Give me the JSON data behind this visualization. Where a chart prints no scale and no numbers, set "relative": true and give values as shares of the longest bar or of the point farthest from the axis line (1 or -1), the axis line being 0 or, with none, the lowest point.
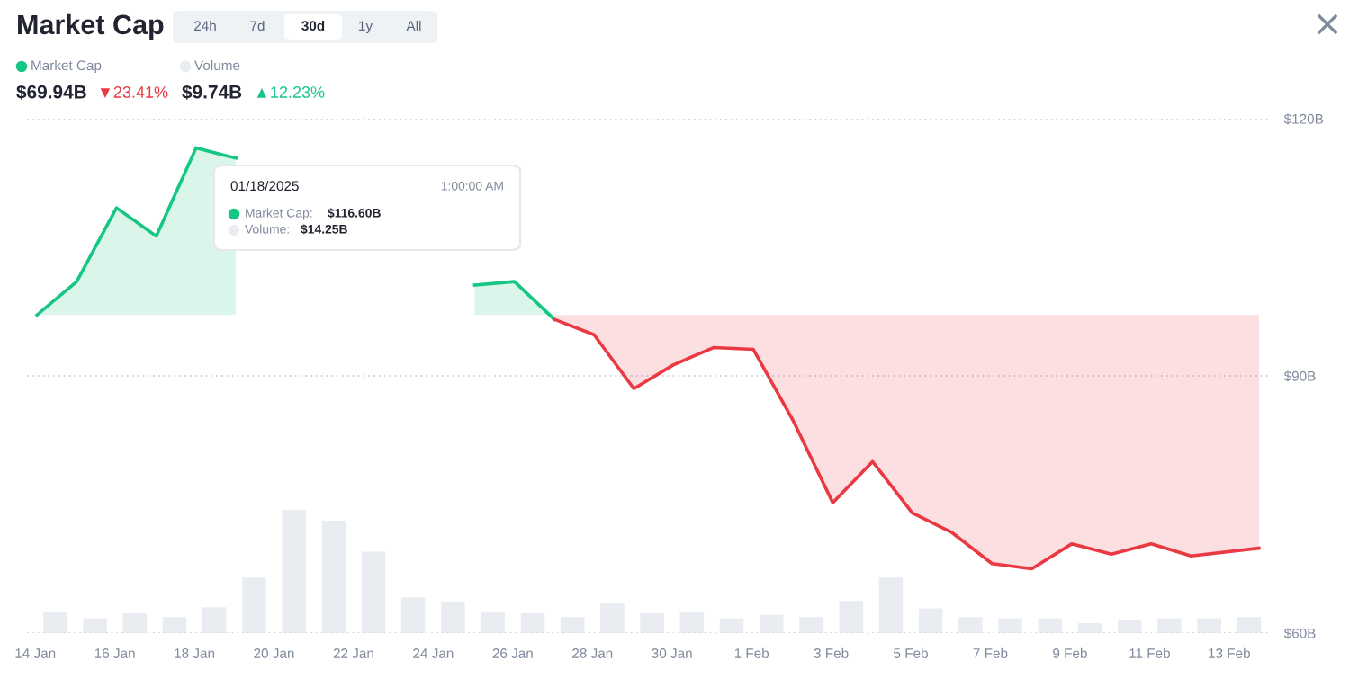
{
  "chart_data": [
    {
      "type": "bar",
      "relative": true,
      "legend": "top left",
      "x": [
        "2025-01-14T12:00",
        "2025-01-15T12:00",
        "2025-01-16T12:00",
        "2025-01-17T12:00",
        "2025-01-18T12:00",
        "2025-01-19T12:00",
        "2025-01-20T12:00",
        "2025-01-21T12:00",
        "2025-01-22T12:00",
        "2025-01-23T12:00",
        "2025-01-24T12:00",
        "2025-01-25T12:00",
        "2025-01-26T12:00",
        "2025-01-27T12:00",
        "2025-01-28T12:00",
        "2025-01-29T12:00",
        "2025-01-30T12:00",
        "2025-01-31T12:00",
        "2025-02-01T12:00",
        "2025-02-02T12:00",
        "2025-02-03T12:00",
        "2025-02-04T12:00",
        "2025-02-05T12:00",
        "2025-02-06T12:00",
        "2025-02-07T12:00",
        "2025-02-08T12:00",
        "2025-02-09T12:00",
        "2025-02-10T12:00",
        "2025-02-11T12:00",
        "2025-02-12T12:00",
        "2025-02-13T12:00"
      ],
      "xlim": [
        "2025-01-13T19:00",
        "2025-02-14T00:00"
      ],
      "series": [
        {
          "name": "Volume",
          "color": "#e9edf1",
          "values": [
            0.17,
            0.12,
            0.16,
            0.13,
            0.21,
            0.45,
            1,
            0.91,
            0.66,
            0.29,
            0.25,
            0.17,
            0.16,
            0.13,
            0.24,
            0.16,
            0.17,
            0.12,
            0.15,
            0.13,
            0.26,
            0.45,
            0.2,
            0.13,
            0.12,
            0.12,
            0.08,
            0.11,
            0.12,
            0.12,
            0.13
          ]
        }
      ]
    },
    {
      "type": "line",
      "title": "Market Cap",
      "legend": "top left",
      "grid": "y",
      "xlim": [
        "2025-01-13T19:00",
        "2025-02-14T00:00"
      ],
      "xticks": [
        {
          "value": "2025-01-14",
          "label": "14 Jan"
        },
        {
          "value": "2025-01-16",
          "label": "16 Jan"
        },
        {
          "value": "2025-01-18",
          "label": "18 Jan"
        },
        {
          "value": "2025-01-20",
          "label": "20 Jan"
        },
        {
          "value": "2025-01-22",
          "label": "22 Jan"
        },
        {
          "value": "2025-01-24",
          "label": "24 Jan"
        },
        {
          "value": "2025-01-26",
          "label": "26 Jan"
        },
        {
          "value": "2025-01-28",
          "label": "28 Jan"
        },
        {
          "value": "2025-01-30",
          "label": "30 Jan"
        },
        {
          "value": "2025-02-01",
          "label": "1 Feb"
        },
        {
          "value": "2025-02-03",
          "label": "3 Feb"
        },
        {
          "value": "2025-02-05",
          "label": "5 Feb"
        },
        {
          "value": "2025-02-07",
          "label": "7 Feb"
        },
        {
          "value": "2025-02-09",
          "label": "9 Feb"
        },
        {
          "value": "2025-02-11",
          "label": "11 Feb"
        },
        {
          "value": "2025-02-13",
          "label": "13 Feb"
        }
      ],
      "ylim": [
        60,
        120
      ],
      "yticks": [
        {
          "value": 60,
          "label": "$60B"
        },
        {
          "value": 90,
          "label": "$90B"
        },
        {
          "value": 120,
          "label": "$120B"
        }
      ],
      "series": [
        {
          "name": "Market Cap",
          "color": "#16c784",
          "x": [
            "2025-01-14T01:00",
            "2025-01-15T01:00",
            "2025-01-16T01:00",
            "2025-01-17T01:00",
            "2025-01-18T01:00",
            "2025-01-19T01:00",
            "2025-01-20T01:00",
            "2025-01-21T01:00",
            "2025-01-22T01:00",
            "2025-01-23T01:00",
            "2025-01-24T01:00",
            "2025-01-25T01:00",
            "2025-01-26T01:00",
            "2025-01-27T01:00"
          ],
          "values": [
            97.1,
            101.0,
            109.6,
            106.3,
            116.6,
            115.4,
            null,
            null,
            null,
            null,
            null,
            100.6,
            101.0,
            96.6
          ],
          "lower": [
            97.1,
            97.1,
            97.1,
            97.1,
            97.1,
            97.1,
            null,
            null,
            null,
            null,
            null,
            97.1,
            97.1,
            97.1
          ],
          "upper": [
            97.1,
            101.0,
            109.6,
            106.3,
            116.6,
            115.4,
            null,
            null,
            null,
            null,
            null,
            100.6,
            101.0,
            97.1
          ]
        },
        {
          "color": "#ea3943",
          "x": [
            "2025-01-27T01:00",
            "2025-01-28T01:00",
            "2025-01-29T01:00",
            "2025-01-30T01:00",
            "2025-01-31T01:00",
            "2025-02-01T01:00",
            "2025-02-02T01:00",
            "2025-02-03T01:00",
            "2025-02-04T01:00",
            "2025-02-05T01:00",
            "2025-02-06T01:00",
            "2025-02-07T01:00",
            "2025-02-08T01:00",
            "2025-02-09T01:00",
            "2025-02-10T01:00",
            "2025-02-11T01:00",
            "2025-02-12T01:00",
            "2025-02-13T18:00"
          ],
          "values": [
            96.6,
            94.8,
            88.5,
            91.3,
            93.3,
            93.1,
            84.8,
            75.2,
            80.0,
            74.0,
            71.7,
            68.1,
            67.5,
            70.4,
            69.2,
            70.4,
            69.0,
            69.9
          ],
          "lower": [
            96.6,
            94.8,
            88.5,
            91.3,
            93.3,
            93.1,
            84.8,
            75.2,
            80.0,
            74.0,
            71.7,
            68.1,
            67.5,
            70.4,
            69.2,
            70.4,
            69.0,
            69.9
          ],
          "upper": [
            97.1,
            97.1,
            97.1,
            97.1,
            97.1,
            97.1,
            97.1,
            97.1,
            97.1,
            97.1,
            97.1,
            97.1,
            97.1,
            97.1,
            97.1,
            97.1,
            97.1,
            97.1
          ]
        }
      ],
      "annotations": [
        "24h",
        "7d",
        "30d",
        "1y",
        "All",
        "$69.94B",
        "▼23.41%",
        "$9.74B",
        "▲12.23%",
        "01/18/2025",
        "1:00:00 AM",
        "Market Cap:",
        "$116.60B",
        "Volume:",
        "$14.25B"
      ]
    }
  ]
}
